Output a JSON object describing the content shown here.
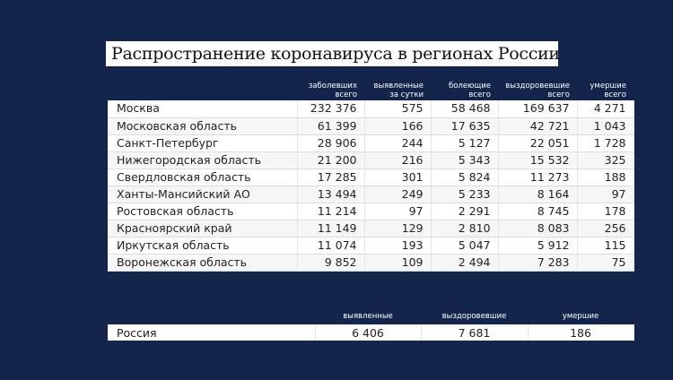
{
  "title": "Распространение коронавируса в регионах России",
  "headers": [
    "заболевших всего",
    "выявленные за сутки",
    "болеющие всего",
    "выздоровевшие всего",
    "умершие всего"
  ],
  "headers_split": [
    [
      "заболевших",
      "всего"
    ],
    [
      "выявленные",
      "за сутки"
    ],
    [
      "болеющие",
      "всего"
    ],
    [
      "выздоровевшие",
      "всего"
    ],
    [
      "умершие",
      "всего"
    ]
  ],
  "rows": [
    {
      "region": "Москва",
      "values": [
        "232 376",
        "575",
        "58 468",
        "169 637",
        "4 271"
      ]
    },
    {
      "region": "Московская область",
      "values": [
        "61 399",
        "166",
        "17 635",
        "42 721",
        "1 043"
      ]
    },
    {
      "region": "Санкт-Петербург",
      "values": [
        "28 906",
        "244",
        "5 127",
        "22 051",
        "1 728"
      ]
    },
    {
      "region": "Нижегородская область",
      "values": [
        "21 200",
        "216",
        "5 343",
        "15 532",
        "325"
      ]
    },
    {
      "region": "Свердловская область",
      "values": [
        "17 285",
        "301",
        "5 824",
        "11 273",
        "188"
      ]
    },
    {
      "region": "Ханты-Мансийский АО",
      "values": [
        "13 494",
        "249",
        "5 233",
        "8 164",
        "97"
      ]
    },
    {
      "region": "Ростовская область",
      "values": [
        "11 214",
        "97",
        "2 291",
        "8 745",
        "178"
      ]
    },
    {
      "region": "Красноярский край",
      "values": [
        "11 149",
        "129",
        "2 810",
        "8 083",
        "256"
      ]
    },
    {
      "region": "Иркутская область",
      "values": [
        "11 074",
        "193",
        "5 047",
        "5 912",
        "115"
      ]
    },
    {
      "region": "Воронежская область",
      "values": [
        "9 852",
        "109",
        "2 494",
        "7 283",
        "75"
      ]
    }
  ],
  "total": {
    "headers": [
      "выявленные",
      "выздоровевшие",
      "умершие"
    ],
    "region": "Россия",
    "values": [
      "6 406",
      "7 681",
      "186"
    ]
  },
  "colors": {
    "background": "#13254a",
    "table": "#ffffff"
  }
}
